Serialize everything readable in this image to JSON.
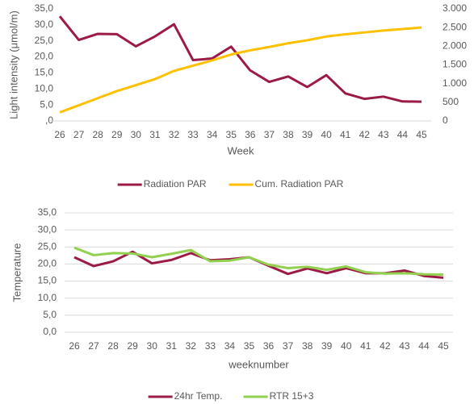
{
  "chart_data": [
    {
      "type": "line",
      "y_label": "Light intensity (μmol/m)",
      "x_label": "Week",
      "categories": [
        "26",
        "27",
        "28",
        "29",
        "30",
        "31",
        "32",
        "33",
        "34",
        "35",
        "36",
        "37",
        "38",
        "39",
        "40",
        "41",
        "42",
        "43",
        "44",
        "45"
      ],
      "ylim": [
        0,
        35
      ],
      "yticks": [
        {
          "value": 0,
          "label": ",0"
        },
        {
          "value": 5,
          "label": "5,0"
        },
        {
          "value": 10,
          "label": "10,0"
        },
        {
          "value": 15,
          "label": "15,0"
        },
        {
          "value": 20,
          "label": "20,0"
        },
        {
          "value": 25,
          "label": "25,0"
        },
        {
          "value": 30,
          "label": "30,0"
        },
        {
          "value": 35,
          "label": "35,0"
        }
      ],
      "y2lim": [
        0,
        3000
      ],
      "y2ticks": [
        0,
        500,
        {
          "value": 1000,
          "label": "1.000"
        },
        {
          "value": 1500,
          "label": "1.500"
        },
        {
          "value": 2000,
          "label": "2.000"
        },
        {
          "value": 2500,
          "label": "2.500"
        },
        {
          "value": 3000,
          "label": "3.000"
        }
      ],
      "grid": false,
      "legend": "bottom",
      "series": [
        {
          "name": "Radiation PAR",
          "color": "#9b1b45",
          "values": [
            32.7,
            25.3,
            27.2,
            27.1,
            23.3,
            26.4,
            30.2,
            19.0,
            19.5,
            23.2,
            15.8,
            12.2,
            13.9,
            10.6,
            14.3,
            8.6,
            6.9,
            7.6,
            6.1,
            6.0
          ]
        },
        {
          "name": "Cum. Radiation PAR",
          "color": "#ffc000",
          "axis": "y2",
          "values": [
            230,
            420,
            610,
            800,
            960,
            1120,
            1340,
            1480,
            1620,
            1780,
            1890,
            1980,
            2080,
            2160,
            2260,
            2320,
            2370,
            2420,
            2460,
            2500
          ]
        }
      ]
    },
    {
      "type": "line",
      "y_label": "Temperature",
      "x_label": "weeknumber",
      "categories": [
        "26",
        "27",
        "28",
        "29",
        "30",
        "31",
        "32",
        "33",
        "34",
        "35",
        "36",
        "37",
        "38",
        "39",
        "40",
        "41",
        "42",
        "43",
        "44",
        "45"
      ],
      "ylim": [
        0,
        35
      ],
      "yticks": [
        {
          "value": 0,
          "label": "0,0"
        },
        {
          "value": 5,
          "label": "5,0"
        },
        {
          "value": 10,
          "label": "10,0"
        },
        {
          "value": 15,
          "label": "15,0"
        },
        {
          "value": 20,
          "label": "20,0"
        },
        {
          "value": 25,
          "label": "25,0"
        },
        {
          "value": 30,
          "label": "30,0"
        },
        {
          "value": 35,
          "label": "35,0"
        }
      ],
      "grid": true,
      "legend": "bottom",
      "series": [
        {
          "name": "24hr Temp.",
          "color": "#9b1b45",
          "values": [
            22.0,
            19.4,
            20.8,
            23.6,
            20.2,
            21.2,
            23.2,
            21.1,
            21.4,
            22.0,
            19.5,
            17.1,
            18.7,
            17.3,
            18.8,
            17.3,
            17.3,
            18.1,
            16.5,
            16.0
          ]
        },
        {
          "name": "RTR 15+3",
          "color": "#92d050",
          "values": [
            24.8,
            22.6,
            23.2,
            23.1,
            22.0,
            23.0,
            24.1,
            20.8,
            21.0,
            22.0,
            19.8,
            18.8,
            19.2,
            18.3,
            19.3,
            17.6,
            17.2,
            17.3,
            17.0,
            16.9
          ]
        }
      ]
    }
  ]
}
